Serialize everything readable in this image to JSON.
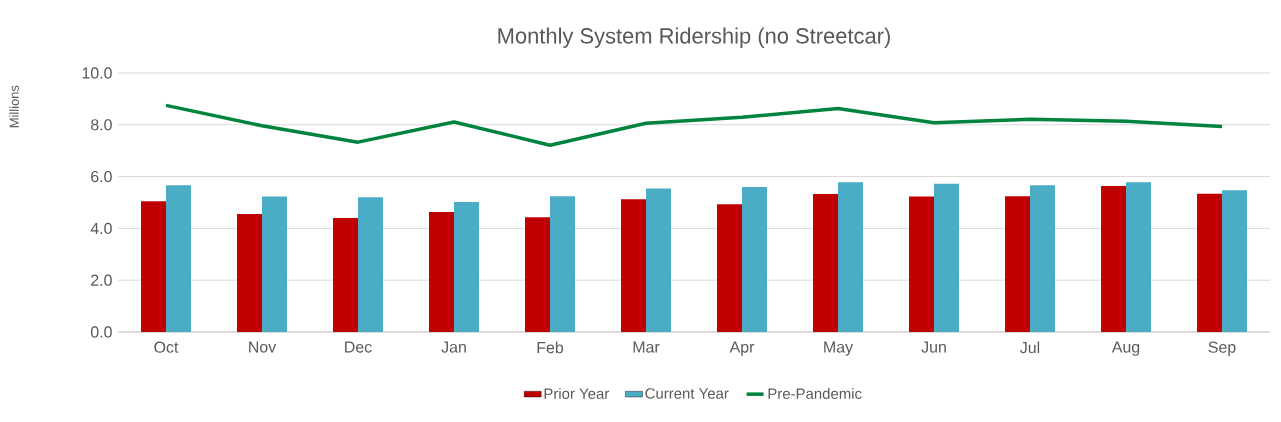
{
  "chart_data": {
    "type": "bar",
    "title": "Monthly System Ridership (no Streetcar)",
    "ylabel": "Millions",
    "categories": [
      "Oct",
      "Nov",
      "Dec",
      "Jan",
      "Feb",
      "Mar",
      "Apr",
      "May",
      "Jun",
      "Jul",
      "Aug",
      "Sep"
    ],
    "series": [
      {
        "name": "Prior Year",
        "color": "#c00000",
        "values": [
          5.05,
          4.56,
          4.4,
          4.63,
          4.43,
          5.13,
          4.93,
          5.33,
          5.23,
          5.24,
          5.64,
          5.34
        ]
      },
      {
        "name": "Current Year",
        "color": "#4bacc6",
        "values": [
          5.67,
          5.23,
          5.2,
          5.02,
          5.24,
          5.54,
          5.6,
          5.78,
          5.72,
          5.67,
          5.78,
          5.47
        ]
      },
      {
        "name": "Pre-Pandemic",
        "type": "line",
        "color": "#00843d",
        "values": [
          8.75,
          7.96,
          7.33,
          8.11,
          7.21,
          8.06,
          8.29,
          8.63,
          8.08,
          8.21,
          8.14,
          7.93
        ]
      }
    ],
    "ylim": [
      0,
      10
    ],
    "yticks": [
      {
        "value": 0,
        "label": "0.0"
      },
      {
        "value": 2,
        "label": "2.0"
      },
      {
        "value": 4,
        "label": "4.0"
      },
      {
        "value": 6,
        "label": "6.0"
      },
      {
        "value": 8,
        "label": "8.0"
      },
      {
        "value": 10,
        "label": "10.0"
      }
    ],
    "grid": "y",
    "legend": "bottom"
  }
}
